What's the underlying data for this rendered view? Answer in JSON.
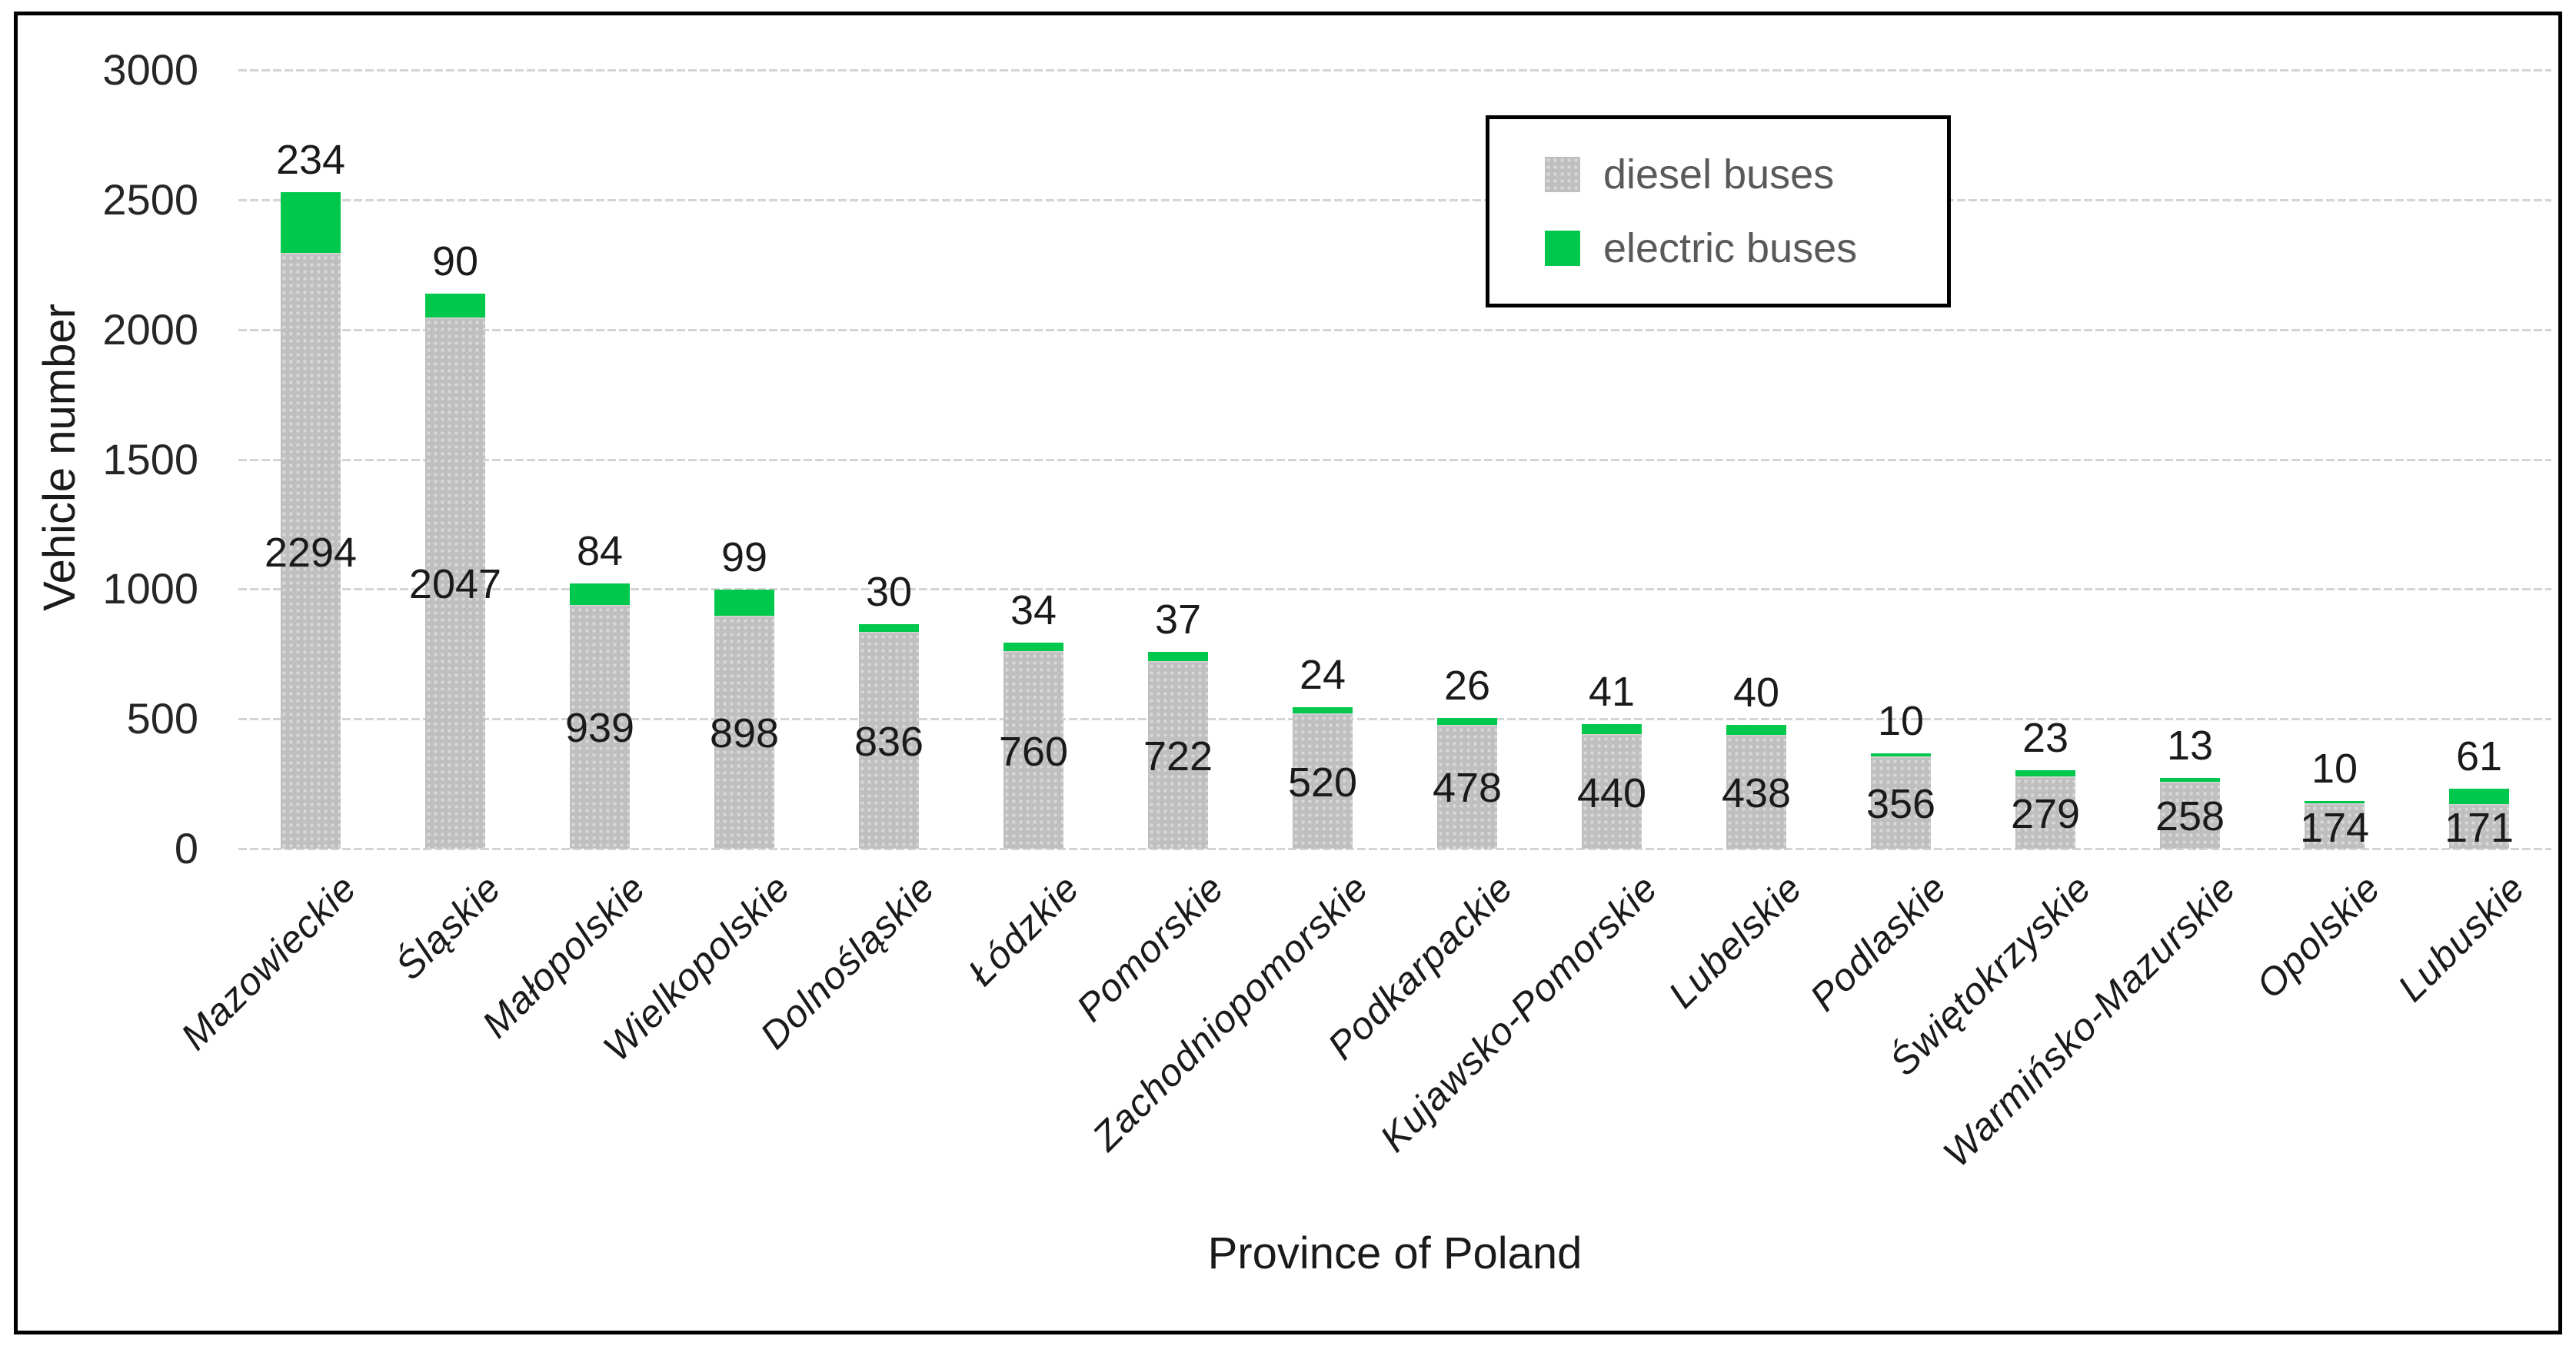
{
  "colors": {
    "diesel": "#BFBFBF",
    "diesel_dot": "#D8D8D8",
    "electric": "#00C84C",
    "grid": "#D4D4D4",
    "text": "#1A1A1A",
    "tick_text": "#262626",
    "legend_text": "#595959",
    "frame": "#000000"
  },
  "legend": {
    "items": [
      {
        "label": "diesel buses",
        "series": "diesel"
      },
      {
        "label": "electric buses",
        "series": "electric"
      }
    ]
  },
  "chart_data": {
    "type": "bar",
    "stacked": true,
    "title": "",
    "xlabel": "Province of Poland",
    "ylabel": "Vehicle number",
    "ylim": [
      0,
      3000
    ],
    "y_ticks": [
      0,
      500,
      1000,
      1500,
      2000,
      2500,
      3000
    ],
    "grid": true,
    "legend_position": "top-right",
    "categories": [
      "Mazowieckie",
      "Śląskie",
      "Małopolskie",
      "Wielkopolskie",
      "Dolnośląskie",
      "Łódzkie",
      "Pomorskie",
      "Zachodniopomorskie",
      "Podkarpackie",
      "Kujawsko-Pomorskie",
      "Lubelskie",
      "Podlaskie",
      "Świętokrzyskie",
      "Warmińsko-Mazurskie",
      "Opolskie",
      "Lubuskie"
    ],
    "series": [
      {
        "name": "diesel buses",
        "values": [
          2294,
          2047,
          939,
          898,
          836,
          760,
          722,
          520,
          478,
          440,
          438,
          356,
          279,
          258,
          174,
          171
        ]
      },
      {
        "name": "electric buses",
        "values": [
          234,
          90,
          84,
          99,
          30,
          34,
          37,
          24,
          26,
          41,
          40,
          10,
          23,
          13,
          10,
          61
        ]
      }
    ]
  }
}
